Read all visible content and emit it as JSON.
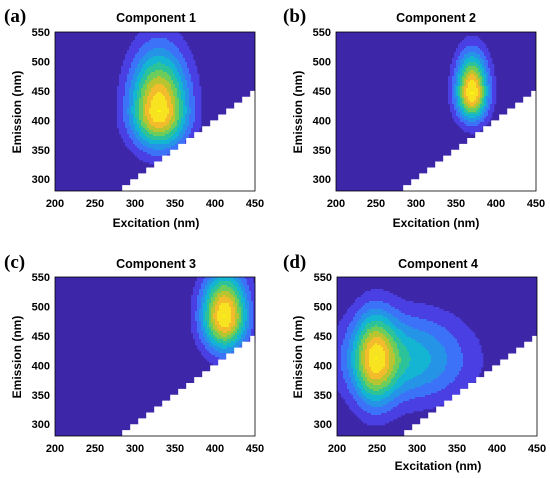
{
  "colormap": [
    "#3e26a8",
    "#4a3fe3",
    "#3c72f7",
    "#2694e6",
    "#14b5d2",
    "#2dc39a",
    "#6ccc5c",
    "#b7c531",
    "#f2bc2d",
    "#f7e320",
    "#f9fb0e"
  ],
  "chart_data": [
    {
      "type": "contour",
      "panel_label": "(a)",
      "title": "Component 1",
      "xlabel": "Excitation (nm)",
      "ylabel": "Emission (nm)",
      "xlim": [
        200,
        450
      ],
      "ylim": [
        280,
        550
      ],
      "xticks": [
        200,
        250,
        300,
        350,
        400,
        450
      ],
      "yticks": [
        300,
        350,
        400,
        450,
        500,
        550
      ],
      "peaks": [
        {
          "excitation": 330,
          "emission": 415,
          "sx": 25,
          "sy_up": 70,
          "sy_down": 42,
          "amp": 1.0
        }
      ]
    },
    {
      "type": "contour",
      "panel_label": "(b)",
      "title": "Component 2",
      "xlabel": "Excitation (nm)",
      "ylabel": "Emission (nm)",
      "xlim": [
        200,
        450
      ],
      "ylim": [
        280,
        550
      ],
      "xticks": [
        200,
        250,
        300,
        350,
        400,
        450
      ],
      "yticks": [
        300,
        350,
        400,
        450,
        500,
        550
      ],
      "peaks": [
        {
          "excitation": 370,
          "emission": 447,
          "sx": 14,
          "sy_up": 45,
          "sy_down": 32,
          "amp": 1.0
        }
      ]
    },
    {
      "type": "contour",
      "panel_label": "(c)",
      "title": "Component 3",
      "xlabel": "Excitation (nm)",
      "ylabel": "Emission (nm)",
      "xlim": [
        200,
        450
      ],
      "ylim": [
        280,
        550
      ],
      "xticks": [
        200,
        250,
        300,
        350,
        400,
        450
      ],
      "yticks": [
        300,
        350,
        400,
        450,
        500,
        550
      ],
      "peaks": [
        {
          "excitation": 412,
          "emission": 483,
          "sx": 20,
          "sy_up": 52,
          "sy_down": 40,
          "amp": 1.0
        },
        {
          "excitation": 197,
          "emission": 480,
          "sx": 4,
          "sy_up": 15,
          "sy_down": 15,
          "amp": 0.15
        }
      ]
    },
    {
      "type": "contour",
      "panel_label": "(d)",
      "title": "Component 4",
      "xlabel": "Excitation (nm)",
      "ylabel": "Emission (nm)",
      "xlim": [
        200,
        450
      ],
      "ylim": [
        280,
        550
      ],
      "xticks": [
        200,
        250,
        300,
        350,
        400,
        450
      ],
      "yticks": [
        300,
        350,
        400,
        450,
        500,
        550
      ],
      "peaks": [
        {
          "excitation": 247,
          "emission": 412,
          "sx": 18,
          "sy_up": 55,
          "sy_down": 55,
          "amp": 0.72
        },
        {
          "excitation": 285,
          "emission": 410,
          "sx": 55,
          "sy_up": 55,
          "sy_down": 50,
          "amp": 0.55
        }
      ]
    }
  ]
}
